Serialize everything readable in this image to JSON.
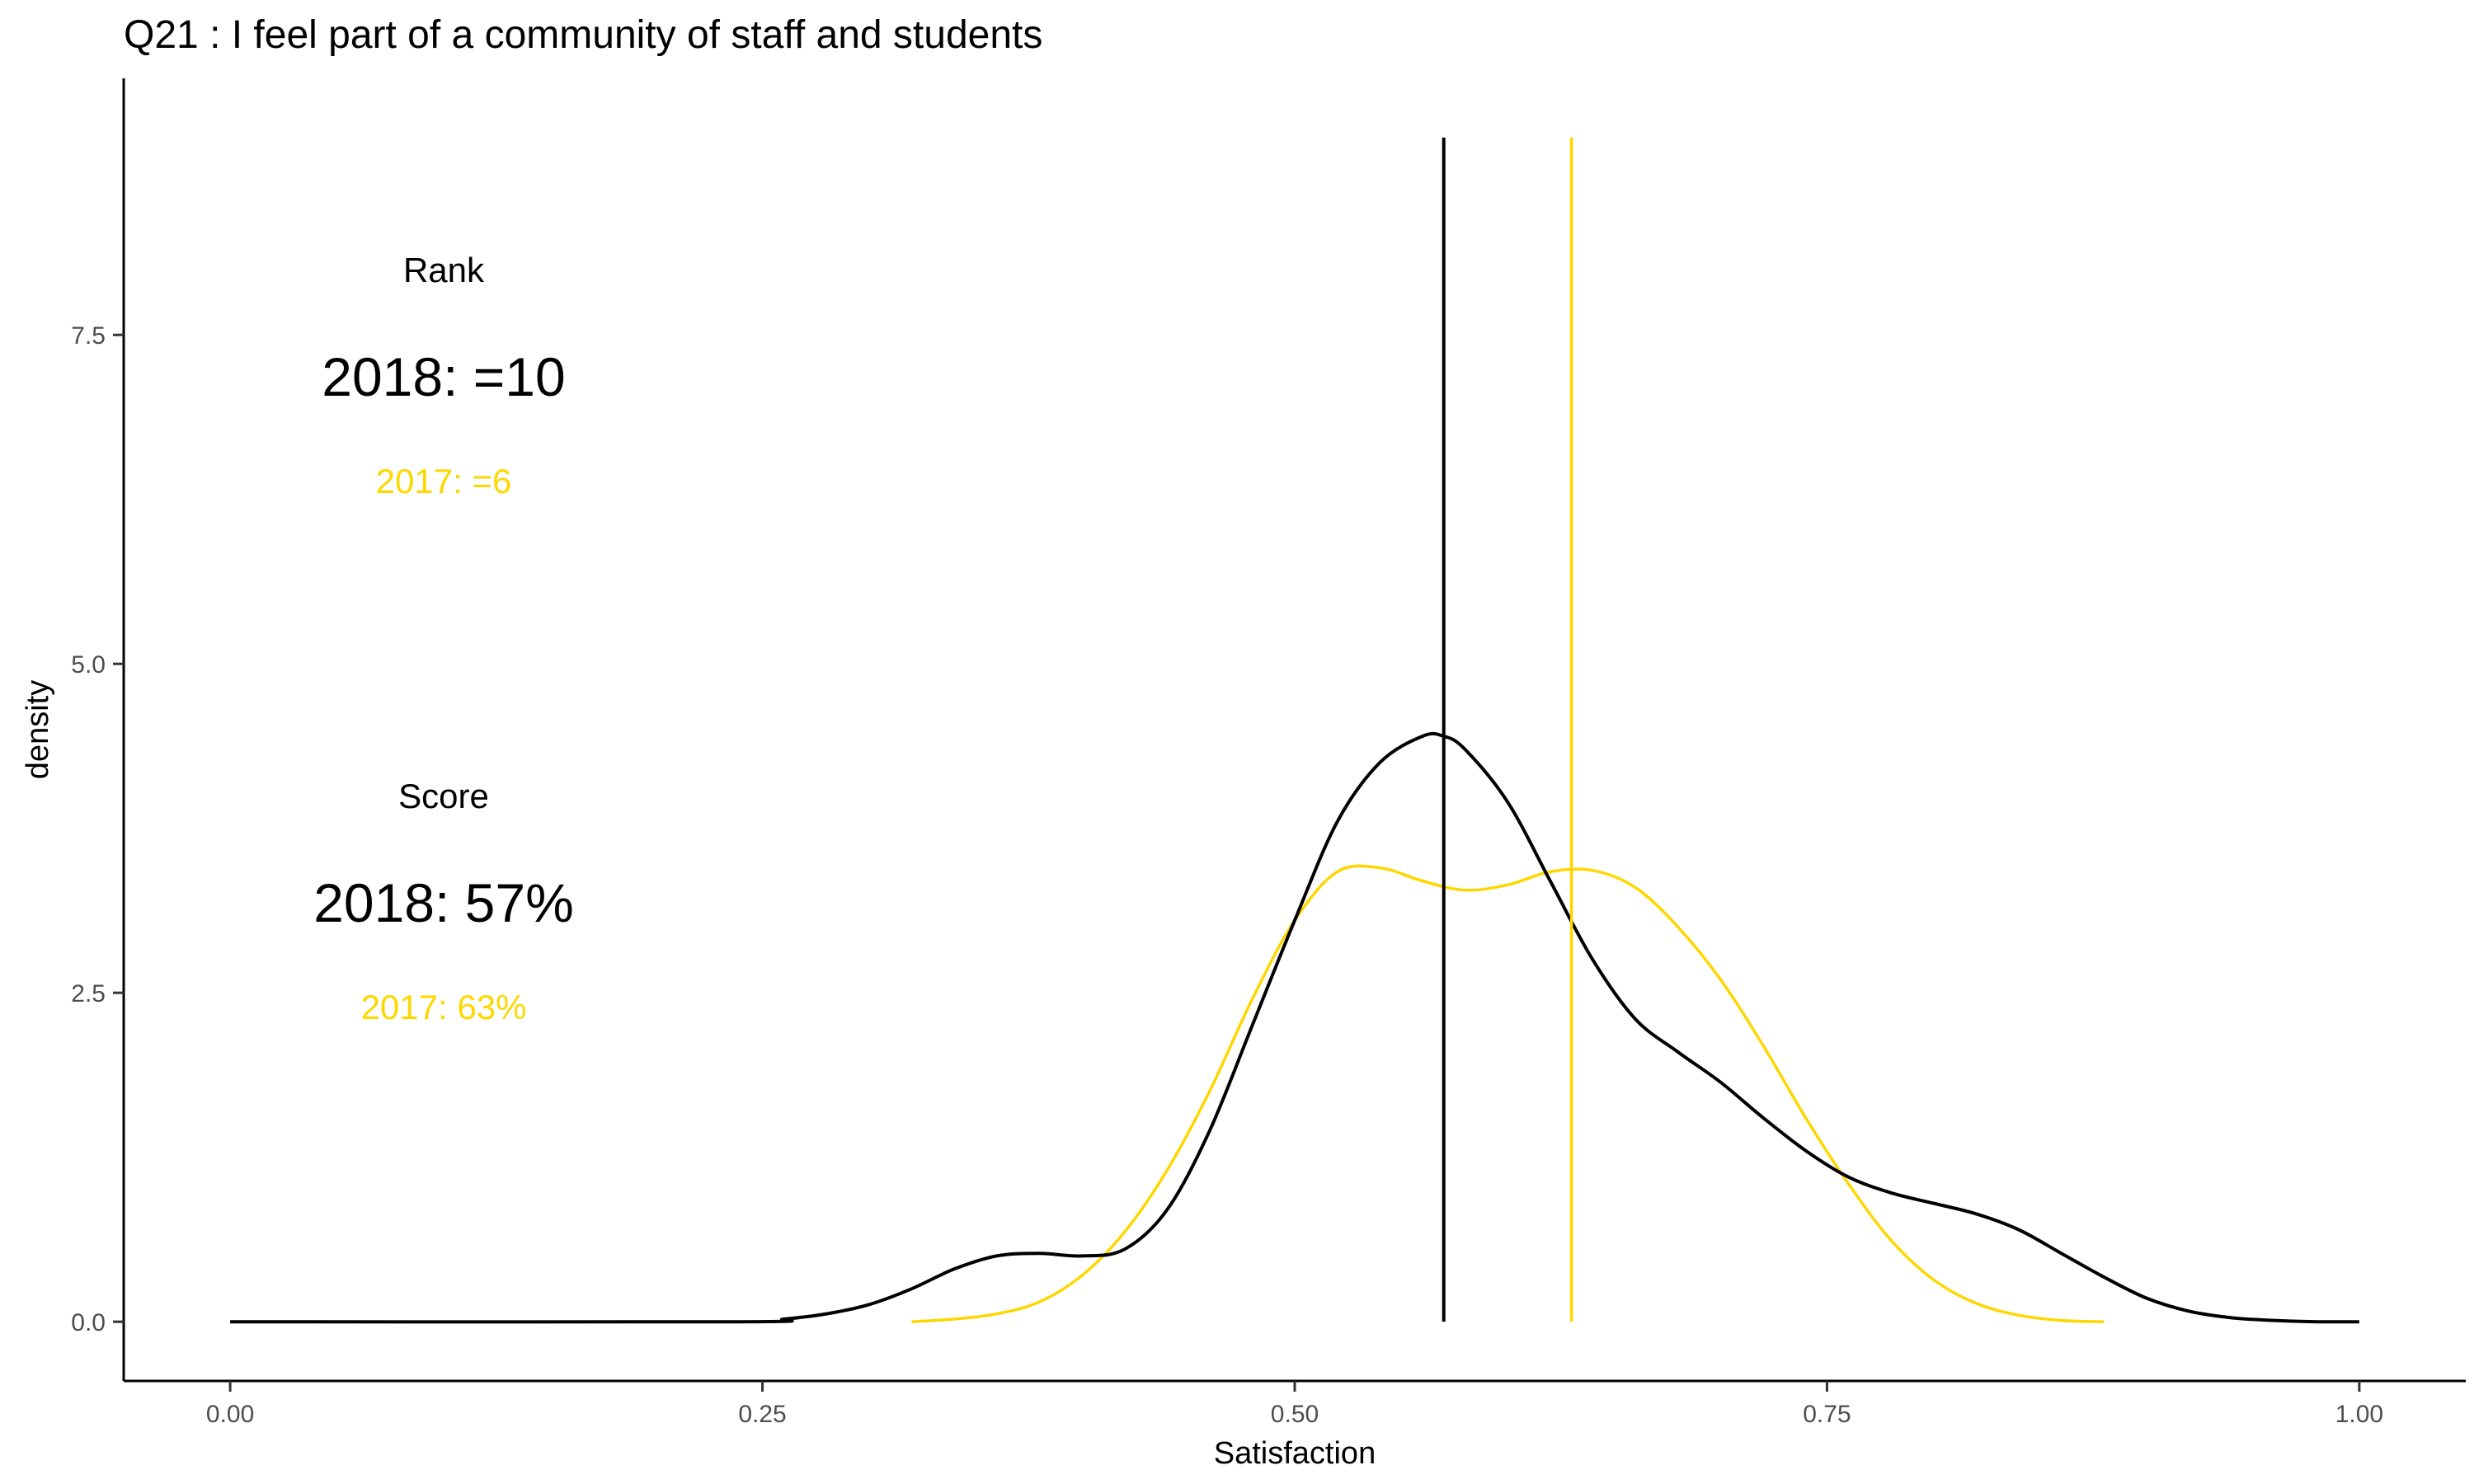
{
  "colors": {
    "y2018": "#000000",
    "y2017": "#FFD700",
    "axis": "#000000",
    "tick_text": "#4d4d4d"
  },
  "chart_data": {
    "type": "line",
    "title": "Q21 :   I feel part of a community of staff and students",
    "xlabel": "Satisfaction",
    "ylabel": "density",
    "xlim": [
      -0.05,
      1.05
    ],
    "ylim": [
      -0.45,
      9.45
    ],
    "x_ticks": [
      0.0,
      0.25,
      0.5,
      0.75,
      1.0
    ],
    "x_tick_labels": [
      "0.00",
      "0.25",
      "0.50",
      "0.75",
      "1.00"
    ],
    "y_ticks": [
      0.0,
      2.5,
      5.0,
      7.5
    ],
    "y_tick_labels": [
      "0.0",
      "2.5",
      "5.0",
      "7.5"
    ],
    "grid": false,
    "legend": "none",
    "series": [
      {
        "color_key": "y2018",
        "x": [
          0.0,
          0.24,
          0.26,
          0.28,
          0.3,
          0.32,
          0.34,
          0.36,
          0.38,
          0.4,
          0.42,
          0.44,
          0.46,
          0.48,
          0.5,
          0.52,
          0.54,
          0.56,
          0.57,
          0.58,
          0.6,
          0.62,
          0.64,
          0.66,
          0.68,
          0.7,
          0.72,
          0.74,
          0.76,
          0.78,
          0.8,
          0.82,
          0.84,
          0.86,
          0.88,
          0.9,
          0.92,
          0.94,
          0.96,
          0.98,
          1.0
        ],
        "y": [
          0.0,
          0.0,
          0.02,
          0.06,
          0.13,
          0.25,
          0.4,
          0.5,
          0.52,
          0.5,
          0.55,
          0.85,
          1.45,
          2.25,
          3.05,
          3.8,
          4.25,
          4.45,
          4.45,
          4.35,
          3.95,
          3.35,
          2.75,
          2.3,
          2.05,
          1.82,
          1.55,
          1.3,
          1.1,
          0.98,
          0.9,
          0.82,
          0.7,
          0.52,
          0.34,
          0.18,
          0.08,
          0.03,
          0.01,
          0.0,
          0.0
        ]
      },
      {
        "color_key": "y2017",
        "x": [
          0.32,
          0.34,
          0.36,
          0.38,
          0.4,
          0.42,
          0.44,
          0.46,
          0.48,
          0.5,
          0.52,
          0.54,
          0.56,
          0.58,
          0.6,
          0.62,
          0.64,
          0.66,
          0.68,
          0.7,
          0.72,
          0.74,
          0.76,
          0.78,
          0.8,
          0.82,
          0.84,
          0.86,
          0.88
        ],
        "y": [
          0.0,
          0.02,
          0.06,
          0.15,
          0.35,
          0.68,
          1.15,
          1.75,
          2.45,
          3.05,
          3.42,
          3.45,
          3.35,
          3.28,
          3.32,
          3.42,
          3.43,
          3.3,
          3.0,
          2.6,
          2.1,
          1.55,
          1.05,
          0.62,
          0.32,
          0.14,
          0.05,
          0.01,
          0.0
        ]
      }
    ],
    "vlines": [
      {
        "x": 0.57,
        "color_key": "y2018",
        "y_top": 9.0
      },
      {
        "x": 0.63,
        "color_key": "y2017",
        "y_top": 9.0
      }
    ],
    "annotations": {
      "rank": {
        "header": "Rank",
        "current": "2018: =10",
        "previous": "2017: =6"
      },
      "score": {
        "header": "Score",
        "current": "2018: 57%",
        "previous": "2017: 63%"
      }
    }
  }
}
